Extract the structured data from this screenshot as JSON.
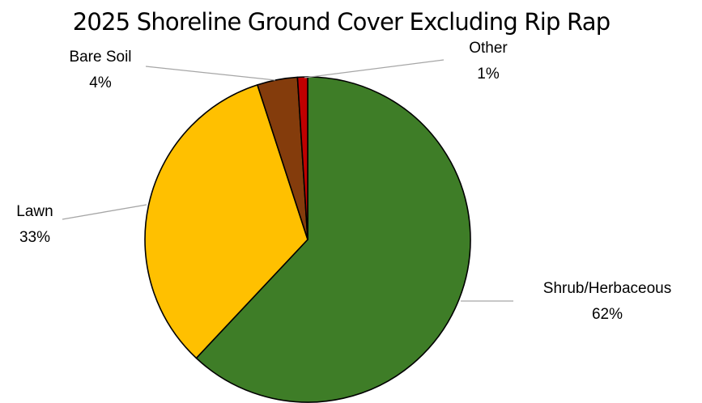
{
  "chart_data": {
    "type": "pie",
    "title": "2025 Shoreline Ground Cover Excluding Rip Rap",
    "legend": "none",
    "slices": [
      {
        "label": "Shrub/Herbaceous",
        "value": 62,
        "display": "62%",
        "color": "#3e7d27"
      },
      {
        "label": "Lawn",
        "value": 33,
        "display": "33%",
        "color": "#ffc000"
      },
      {
        "label": "Bare Soil",
        "value": 4,
        "display": "4%",
        "color": "#843c0c"
      },
      {
        "label": "Other",
        "value": 1,
        "display": "1%",
        "color": "#c00000"
      }
    ],
    "start": "12 o'clock",
    "direction": "clockwise"
  }
}
